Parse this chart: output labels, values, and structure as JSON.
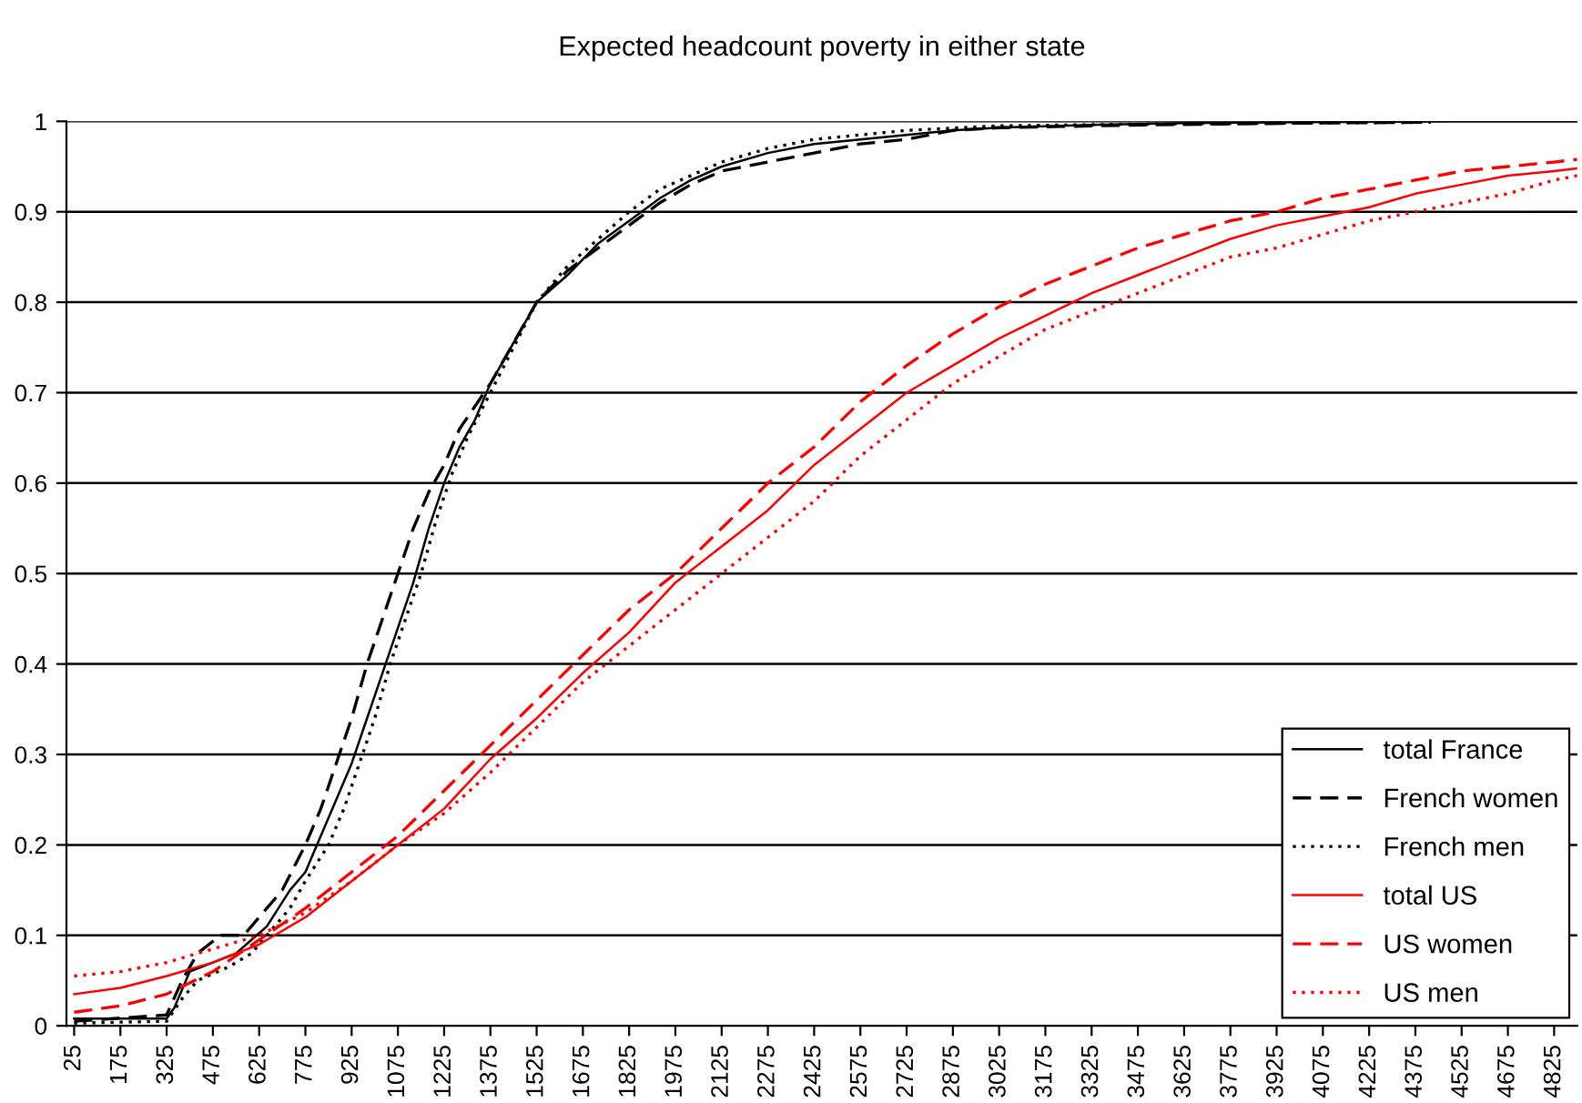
{
  "chart_data": {
    "type": "line",
    "title": "Expected headcount poverty in either state",
    "xlim": [
      0,
      4900
    ],
    "xticks": [
      25,
      175,
      325,
      475,
      625,
      775,
      925,
      1075,
      1225,
      1375,
      1525,
      1675,
      1825,
      1975,
      2125,
      2275,
      2425,
      2575,
      2725,
      2875,
      3025,
      3175,
      3325,
      3475,
      3625,
      3775,
      3925,
      4075,
      4225,
      4375,
      4525,
      4675,
      4825
    ],
    "ylim": [
      0,
      1
    ],
    "yticks": [
      0,
      0.1,
      0.2,
      0.3,
      0.4,
      0.5,
      0.6,
      0.7,
      0.8,
      0.9,
      1
    ],
    "grid": "y",
    "legend": "bottom right",
    "marker": "none",
    "series": [
      {
        "name": "total France",
        "color": "#000000",
        "line_style": "solid",
        "x": [
          25,
          325,
          350,
          400,
          475,
          550,
          600,
          650,
          725,
          775,
          825,
          875,
          925,
          975,
          1025,
          1075,
          1125,
          1175,
          1225,
          1275,
          1325,
          1375,
          1425,
          1475,
          1525,
          1625,
          1725,
          1825,
          1925,
          2025,
          2125,
          2275,
          2425,
          2575,
          2725,
          2875,
          3025,
          3325,
          3625,
          4000,
          4500,
          4900
        ],
        "values": [
          0.008,
          0.008,
          0.02,
          0.06,
          0.07,
          0.08,
          0.095,
          0.11,
          0.15,
          0.17,
          0.21,
          0.25,
          0.29,
          0.34,
          0.39,
          0.44,
          0.49,
          0.55,
          0.6,
          0.64,
          0.67,
          0.71,
          0.74,
          0.77,
          0.8,
          0.83,
          0.865,
          0.89,
          0.915,
          0.935,
          0.95,
          0.965,
          0.975,
          0.98,
          0.985,
          0.99,
          0.993,
          0.996,
          0.998,
          0.999,
          1.0,
          1.0
        ]
      },
      {
        "name": "French women",
        "color": "#000000",
        "line_style": "dashed",
        "x": [
          25,
          325,
          375,
          425,
          500,
          575,
          625,
          700,
          775,
          825,
          875,
          925,
          975,
          1025,
          1075,
          1125,
          1175,
          1225,
          1275,
          1375,
          1525,
          1625,
          1725,
          1825,
          1925,
          2025,
          2125,
          2275,
          2425,
          2575,
          2725,
          2875,
          3025,
          3500,
          4000,
          4425
        ],
        "values": [
          0.005,
          0.012,
          0.05,
          0.08,
          0.1,
          0.1,
          0.12,
          0.15,
          0.2,
          0.24,
          0.29,
          0.34,
          0.4,
          0.45,
          0.5,
          0.55,
          0.59,
          0.62,
          0.66,
          0.71,
          0.8,
          0.835,
          0.86,
          0.885,
          0.91,
          0.93,
          0.945,
          0.955,
          0.965,
          0.975,
          0.98,
          0.99,
          0.993,
          0.996,
          0.998,
          0.999
        ]
      },
      {
        "name": "French men",
        "color": "#000000",
        "line_style": "dotted",
        "x": [
          25,
          325,
          375,
          425,
          525,
          600,
          650,
          725,
          775,
          850,
          900,
          950,
          1000,
          1050,
          1100,
          1150,
          1200,
          1250,
          1300,
          1375,
          1525,
          1625,
          1725,
          1825,
          1925,
          2025,
          2125,
          2275,
          2425,
          2575,
          2725,
          3025,
          3500,
          4000,
          4425
        ],
        "values": [
          0.003,
          0.005,
          0.03,
          0.05,
          0.065,
          0.08,
          0.1,
          0.13,
          0.16,
          0.2,
          0.24,
          0.29,
          0.34,
          0.4,
          0.45,
          0.5,
          0.56,
          0.61,
          0.65,
          0.7,
          0.8,
          0.84,
          0.87,
          0.9,
          0.925,
          0.94,
          0.955,
          0.97,
          0.98,
          0.985,
          0.99,
          0.995,
          0.997,
          0.998,
          0.999
        ]
      },
      {
        "name": "total US",
        "color": "#ff0000",
        "line_style": "solid",
        "x": [
          25,
          175,
          325,
          475,
          625,
          775,
          925,
          1075,
          1225,
          1375,
          1525,
          1675,
          1825,
          1975,
          2125,
          2275,
          2425,
          2575,
          2725,
          2875,
          3025,
          3175,
          3325,
          3475,
          3625,
          3775,
          3925,
          4075,
          4225,
          4375,
          4525,
          4675,
          4825,
          4900
        ],
        "values": [
          0.035,
          0.042,
          0.055,
          0.07,
          0.09,
          0.12,
          0.16,
          0.2,
          0.24,
          0.295,
          0.34,
          0.39,
          0.435,
          0.49,
          0.53,
          0.57,
          0.62,
          0.66,
          0.7,
          0.73,
          0.76,
          0.785,
          0.81,
          0.83,
          0.85,
          0.87,
          0.885,
          0.895,
          0.905,
          0.92,
          0.93,
          0.94,
          0.945,
          0.948
        ]
      },
      {
        "name": "US women",
        "color": "#ff0000",
        "line_style": "dashed",
        "x": [
          25,
          175,
          325,
          475,
          625,
          775,
          925,
          1075,
          1225,
          1375,
          1525,
          1675,
          1825,
          1975,
          2125,
          2275,
          2425,
          2575,
          2725,
          2875,
          3025,
          3175,
          3325,
          3475,
          3625,
          3775,
          3925,
          4075,
          4225,
          4375,
          4525,
          4675,
          4825,
          4900
        ],
        "values": [
          0.015,
          0.022,
          0.035,
          0.06,
          0.095,
          0.13,
          0.17,
          0.21,
          0.26,
          0.31,
          0.36,
          0.41,
          0.46,
          0.5,
          0.55,
          0.6,
          0.64,
          0.69,
          0.73,
          0.765,
          0.795,
          0.82,
          0.84,
          0.86,
          0.875,
          0.89,
          0.9,
          0.915,
          0.925,
          0.935,
          0.945,
          0.95,
          0.955,
          0.958
        ]
      },
      {
        "name": "US men",
        "color": "#ff0000",
        "line_style": "dotted",
        "x": [
          25,
          175,
          325,
          475,
          625,
          775,
          925,
          1075,
          1225,
          1375,
          1525,
          1675,
          1825,
          1975,
          2125,
          2275,
          2425,
          2575,
          2725,
          2875,
          3025,
          3175,
          3325,
          3475,
          3625,
          3775,
          3925,
          4075,
          4225,
          4375,
          4525,
          4675,
          4825,
          4900
        ],
        "values": [
          0.055,
          0.06,
          0.07,
          0.085,
          0.1,
          0.125,
          0.16,
          0.2,
          0.235,
          0.28,
          0.33,
          0.38,
          0.42,
          0.46,
          0.5,
          0.54,
          0.58,
          0.63,
          0.67,
          0.71,
          0.74,
          0.77,
          0.79,
          0.81,
          0.83,
          0.85,
          0.86,
          0.875,
          0.89,
          0.9,
          0.91,
          0.92,
          0.935,
          0.94
        ]
      }
    ]
  }
}
